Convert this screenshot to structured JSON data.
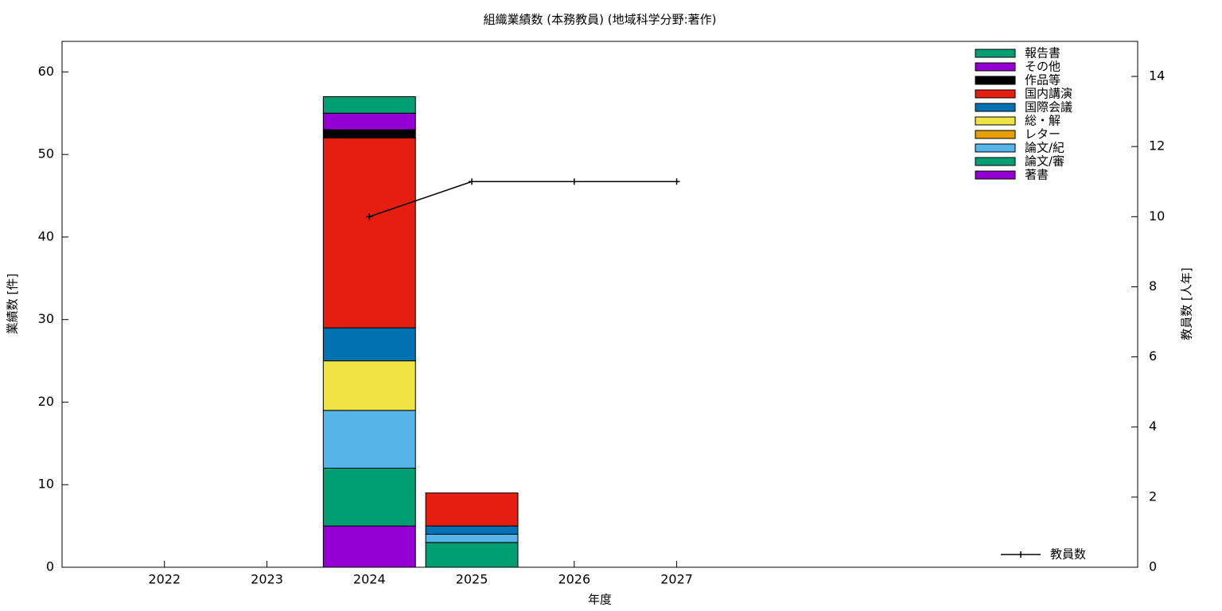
{
  "chart_data": {
    "type": "bar",
    "stacked": true,
    "title": "組織業績数 (本務教員) (地域科学分野:著作)",
    "xlabel": "年度",
    "ylabel": "業績数 [件]",
    "y2label": "教員数 [人年]",
    "x": [
      2022,
      2023,
      2024,
      2025,
      2026,
      2027
    ],
    "xlim": [
      2021,
      2031.5
    ],
    "xticks": [
      2022,
      2023,
      2024,
      2025,
      2026,
      2027
    ],
    "ylim": [
      0,
      63.7
    ],
    "yticks": [
      0,
      10,
      20,
      30,
      40,
      50,
      60
    ],
    "y2lim": [
      0,
      15
    ],
    "y2ticks": [
      0,
      2,
      4,
      6,
      8,
      10,
      12,
      14
    ],
    "legend": "top-right",
    "series": [
      {
        "name": "著書",
        "color": "#9400d3",
        "values": [
          0,
          0,
          5,
          0,
          0,
          0
        ]
      },
      {
        "name": "論文/審",
        "color": "#009e73",
        "values": [
          0,
          0,
          7,
          3,
          0,
          0
        ]
      },
      {
        "name": "論文/紀",
        "color": "#56b4e9",
        "values": [
          0,
          0,
          7,
          1,
          0,
          0
        ]
      },
      {
        "name": "レター",
        "color": "#e69f00",
        "values": [
          0,
          0,
          0,
          0,
          0,
          0
        ]
      },
      {
        "name": "総・解",
        "color": "#f0e442",
        "values": [
          0,
          0,
          6,
          0,
          0,
          0
        ]
      },
      {
        "name": "国際会議",
        "color": "#0072b2",
        "values": [
          0,
          0,
          4,
          1,
          0,
          0
        ]
      },
      {
        "name": "国内講演",
        "color": "#e51e10",
        "values": [
          0,
          0,
          23,
          4,
          0,
          0
        ]
      },
      {
        "name": "作品等",
        "color": "#000000",
        "values": [
          0,
          0,
          1,
          0,
          0,
          0
        ]
      },
      {
        "name": "その他",
        "color": "#9400d3",
        "values": [
          0,
          0,
          2,
          0,
          0,
          0
        ]
      },
      {
        "name": "報告書",
        "color": "#009e73",
        "values": [
          0,
          0,
          2,
          0,
          0,
          0
        ]
      },
      {
        "name": "教員数",
        "type": "line",
        "axis": "y2",
        "color": "#000000",
        "values": [
          null,
          null,
          10,
          11,
          11,
          11
        ]
      }
    ]
  }
}
